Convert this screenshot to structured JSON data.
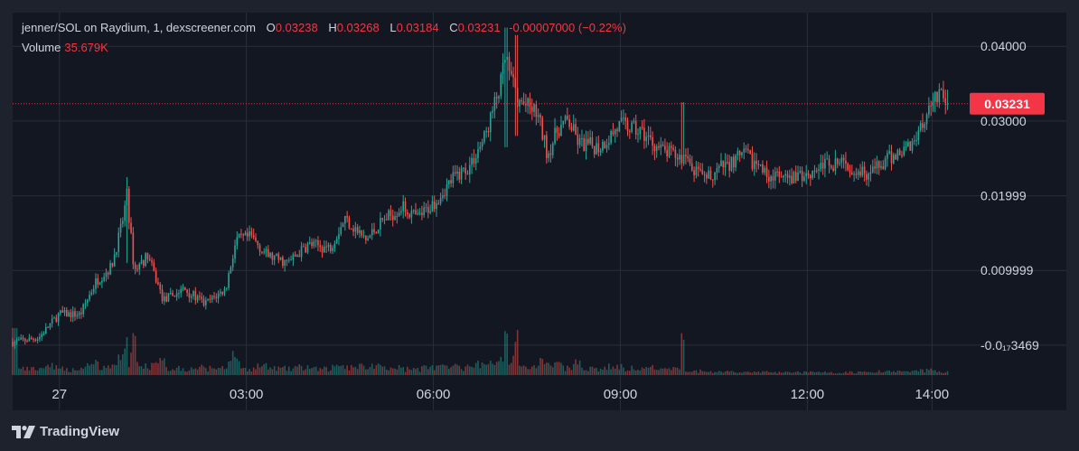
{
  "legend": {
    "pair": "jenner/SOL on Raydium, 1, dexscreener.com",
    "open_label": "O",
    "open": "0.03238",
    "high_label": "H",
    "high": "0.03268",
    "low_label": "L",
    "low": "0.03184",
    "close_label": "C",
    "close": "0.03231",
    "change": "-0.00007000 (−0.22%)",
    "volume_label": "Volume",
    "volume": "35.679K"
  },
  "price_tag": "0.03231",
  "branding": {
    "logo_icon": "tradingview-logo-icon",
    "name": "TradingView"
  },
  "colors": {
    "up": "#26a69a",
    "down": "#ef5350",
    "background": "#131722",
    "frame": "#1e222d",
    "last_price": "#f23645"
  },
  "chart_data": {
    "type": "candlestick",
    "symbol": "jenner/SOL",
    "exchange": "Raydium",
    "interval": "1",
    "x_ticks": [
      "27",
      "03:00",
      "06:00",
      "09:00",
      "12:00",
      "14:00"
    ],
    "x_tick_times": [
      0,
      180,
      360,
      540,
      720,
      840
    ],
    "x_range": [
      -45,
      878
    ],
    "y_ticks": [
      "0.04000",
      "0.03000",
      "0.01999",
      "0.009999",
      "-0.0₁₇3469"
    ],
    "y_tick_values": [
      0.04,
      0.03,
      0.02,
      0.01,
      0.0
    ],
    "ylim": [
      -0.004,
      0.0445
    ],
    "last_price": 0.03231,
    "price_path": [
      [
        -45,
        0.0004
      ],
      [
        -20,
        0.001
      ],
      [
        0,
        0.0042
      ],
      [
        20,
        0.0041
      ],
      [
        35,
        0.0085
      ],
      [
        50,
        0.0105
      ],
      [
        60,
        0.016
      ],
      [
        65,
        0.02
      ],
      [
        72,
        0.01
      ],
      [
        85,
        0.012
      ],
      [
        100,
        0.006
      ],
      [
        120,
        0.0075
      ],
      [
        140,
        0.0055
      ],
      [
        160,
        0.0075
      ],
      [
        170,
        0.014
      ],
      [
        185,
        0.0145
      ],
      [
        200,
        0.012
      ],
      [
        220,
        0.011
      ],
      [
        240,
        0.0135
      ],
      [
        260,
        0.013
      ],
      [
        275,
        0.017
      ],
      [
        295,
        0.014
      ],
      [
        310,
        0.0165
      ],
      [
        330,
        0.0185
      ],
      [
        345,
        0.017
      ],
      [
        360,
        0.019
      ],
      [
        380,
        0.0225
      ],
      [
        395,
        0.024
      ],
      [
        410,
        0.028
      ],
      [
        425,
        0.035
      ],
      [
        430,
        0.039
      ],
      [
        440,
        0.033
      ],
      [
        460,
        0.031
      ],
      [
        470,
        0.0255
      ],
      [
        480,
        0.029
      ],
      [
        490,
        0.03
      ],
      [
        500,
        0.027
      ],
      [
        520,
        0.0265
      ],
      [
        540,
        0.0295
      ],
      [
        560,
        0.0285
      ],
      [
        580,
        0.026
      ],
      [
        600,
        0.025
      ],
      [
        620,
        0.022
      ],
      [
        640,
        0.024
      ],
      [
        660,
        0.0255
      ],
      [
        680,
        0.023
      ],
      [
        700,
        0.022
      ],
      [
        720,
        0.023
      ],
      [
        740,
        0.0245
      ],
      [
        760,
        0.024
      ],
      [
        780,
        0.023
      ],
      [
        800,
        0.025
      ],
      [
        820,
        0.027
      ],
      [
        830,
        0.0295
      ],
      [
        840,
        0.033
      ],
      [
        848,
        0.034
      ],
      [
        855,
        0.0323
      ]
    ],
    "spikes": [
      [
        65,
        0.0225,
        0.011
      ],
      [
        430,
        0.0425,
        0.0265
      ],
      [
        440,
        0.0415,
        0.028
      ],
      [
        600,
        0.0325,
        0.024
      ]
    ],
    "volume_max": 75000
  }
}
